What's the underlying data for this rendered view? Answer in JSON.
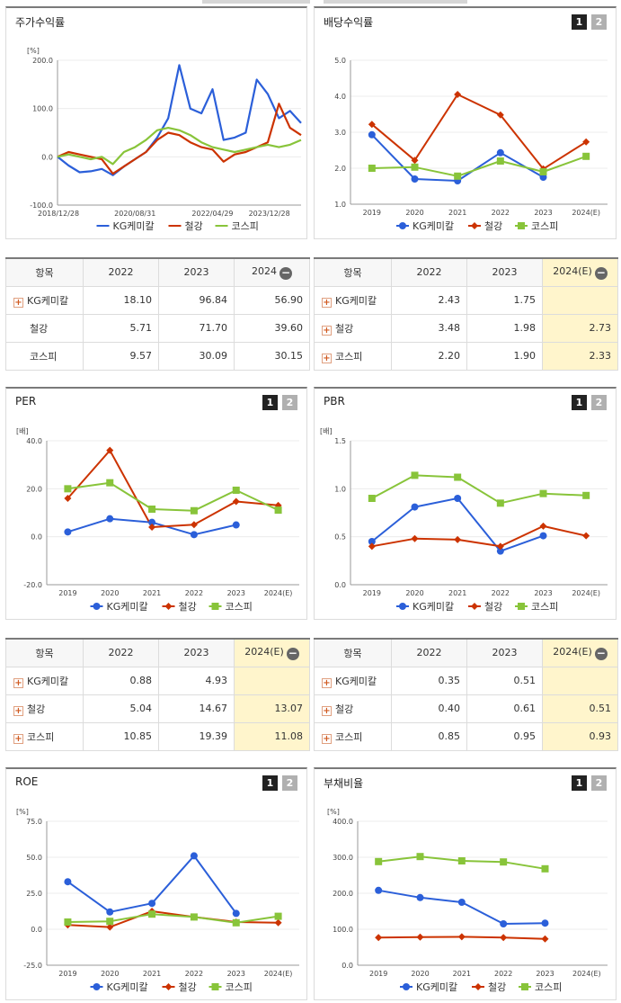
{
  "colors": {
    "kg": "#2b5fd9",
    "steel": "#cc3300",
    "kospi": "#88c43a"
  },
  "legend": [
    "KG케미칼",
    "철강",
    "코스피"
  ],
  "btn1": "1",
  "btn2": "2",
  "stock": {
    "title": "주가수익률",
    "chart_data": {
      "type": "line",
      "unit": "[%]",
      "ylim": [
        -100,
        200
      ],
      "yticks": [
        "200.0",
        "100.0",
        "0.0",
        "-100.0"
      ],
      "x_ticks": [
        "2018/12/28",
        "2020/08/31",
        "2022/04/29",
        "2023/12/28"
      ],
      "x": [
        "2018/12/28",
        "2019/03",
        "2019/06",
        "2019/09",
        "2019/12",
        "2020/03",
        "2020/06",
        "2020/08/31",
        "2020/11",
        "2021/02",
        "2021/05",
        "2021/08",
        "2021/11",
        "2022/02",
        "2022/04/29",
        "2022/07",
        "2022/10",
        "2023/01",
        "2023/04",
        "2023/07",
        "2023/10",
        "2023/12/28",
        "2024/02"
      ],
      "series": [
        {
          "name": "KG케미칼",
          "values": [
            0,
            -18,
            -32,
            -30,
            -25,
            -38,
            -20,
            -5,
            10,
            40,
            80,
            190,
            100,
            90,
            140,
            35,
            40,
            50,
            160,
            130,
            80,
            95,
            70
          ]
        },
        {
          "name": "철강",
          "values": [
            0,
            10,
            5,
            0,
            -5,
            -35,
            -20,
            -5,
            10,
            35,
            50,
            45,
            30,
            20,
            15,
            -10,
            5,
            10,
            20,
            30,
            110,
            60,
            45
          ]
        },
        {
          "name": "코스피",
          "values": [
            0,
            5,
            0,
            -5,
            0,
            -15,
            10,
            20,
            35,
            55,
            60,
            55,
            45,
            30,
            20,
            15,
            10,
            15,
            20,
            25,
            20,
            25,
            35
          ]
        }
      ]
    }
  },
  "dividend": {
    "title": "배당수익률",
    "chart_data": {
      "type": "line",
      "unit": "",
      "ylim": [
        1,
        5
      ],
      "yticks": [
        "5.0",
        "4.0",
        "3.0",
        "2.0",
        "1.0"
      ],
      "categories": [
        "2019",
        "2020",
        "2021",
        "2022",
        "2023",
        "2024(E)"
      ],
      "series": [
        {
          "name": "KG케미칼",
          "values": [
            2.93,
            1.7,
            1.65,
            2.43,
            1.75,
            null
          ]
        },
        {
          "name": "철강",
          "values": [
            3.22,
            2.22,
            4.05,
            3.48,
            1.98,
            2.73
          ]
        },
        {
          "name": "코스피",
          "values": [
            2.0,
            2.03,
            1.78,
            2.2,
            1.9,
            2.33
          ]
        }
      ]
    }
  },
  "per": {
    "title": "PER",
    "chart_data": {
      "type": "line",
      "unit": "[배]",
      "ylim": [
        -20,
        40
      ],
      "yticks": [
        "40.0",
        "20.0",
        "0.0",
        "-20.0"
      ],
      "categories": [
        "2019",
        "2020",
        "2021",
        "2022",
        "2023",
        "2024(E)"
      ],
      "series": [
        {
          "name": "KG케미칼",
          "values": [
            2,
            7.5,
            6,
            0.88,
            4.93,
            null
          ]
        },
        {
          "name": "철강",
          "values": [
            16,
            36,
            4,
            5.04,
            14.67,
            13.07
          ]
        },
        {
          "name": "코스피",
          "values": [
            20,
            22.5,
            11.5,
            10.85,
            19.39,
            11.08
          ]
        }
      ]
    }
  },
  "pbr": {
    "title": "PBR",
    "chart_data": {
      "type": "line",
      "unit": "[배]",
      "ylim": [
        0,
        1.5
      ],
      "yticks": [
        "1.5",
        "1.0",
        "0.5",
        "0.0"
      ],
      "categories": [
        "2019",
        "2020",
        "2021",
        "2022",
        "2023",
        "2024(E)"
      ],
      "series": [
        {
          "name": "KG케미칼",
          "values": [
            0.45,
            0.81,
            0.9,
            0.35,
            0.51,
            null
          ]
        },
        {
          "name": "철강",
          "values": [
            0.4,
            0.48,
            0.47,
            0.4,
            0.61,
            0.51
          ]
        },
        {
          "name": "코스피",
          "values": [
            0.9,
            1.14,
            1.12,
            0.85,
            0.95,
            0.93
          ]
        }
      ]
    }
  },
  "roe": {
    "title": "ROE",
    "chart_data": {
      "type": "line",
      "unit": "[%]",
      "ylim": [
        -25,
        75
      ],
      "yticks": [
        "75.0",
        "50.0",
        "25.0",
        "0.0",
        "-25.0"
      ],
      "categories": [
        "2019",
        "2020",
        "2021",
        "2022",
        "2023",
        "2024(E)"
      ],
      "series": [
        {
          "name": "KG케미칼",
          "values": [
            33,
            12,
            18,
            51,
            11,
            null
          ]
        },
        {
          "name": "철강",
          "values": [
            3,
            1.5,
            12.5,
            8.5,
            5,
            4.5
          ]
        },
        {
          "name": "코스피",
          "values": [
            5,
            5.5,
            10.5,
            8.5,
            4.5,
            9
          ]
        }
      ]
    }
  },
  "debt": {
    "title": "부채비율",
    "chart_data": {
      "type": "line",
      "unit": "[%]",
      "ylim": [
        0,
        400
      ],
      "yticks": [
        "400.0",
        "300.0",
        "200.0",
        "100.0",
        "0.0"
      ],
      "categories": [
        "2019",
        "2020",
        "2021",
        "2022",
        "2023",
        "2024(E)"
      ],
      "series": [
        {
          "name": "KG케미칼",
          "values": [
            208,
            188,
            175,
            115,
            117,
            null
          ]
        },
        {
          "name": "철강",
          "values": [
            77,
            78,
            79,
            77,
            73,
            null
          ]
        },
        {
          "name": "코스피",
          "values": [
            288,
            302,
            290,
            287,
            268,
            null
          ]
        }
      ]
    }
  },
  "tables": {
    "stock": {
      "headers": [
        "항목",
        "2022",
        "2023",
        "2024"
      ],
      "rows": [
        [
          "KG케미칼",
          "18.10",
          "96.84",
          "56.90"
        ],
        [
          "철강",
          "5.71",
          "71.70",
          "39.60"
        ],
        [
          "코스피",
          "9.57",
          "30.09",
          "30.15"
        ]
      ]
    },
    "dividend": {
      "headers": [
        "항목",
        "2022",
        "2023",
        "2024(E)"
      ],
      "rows": [
        [
          "KG케미칼",
          "2.43",
          "1.75",
          ""
        ],
        [
          "철강",
          "3.48",
          "1.98",
          "2.73"
        ],
        [
          "코스피",
          "2.20",
          "1.90",
          "2.33"
        ]
      ]
    },
    "per": {
      "headers": [
        "항목",
        "2022",
        "2023",
        "2024(E)"
      ],
      "rows": [
        [
          "KG케미칼",
          "0.88",
          "4.93",
          ""
        ],
        [
          "철강",
          "5.04",
          "14.67",
          "13.07"
        ],
        [
          "코스피",
          "10.85",
          "19.39",
          "11.08"
        ]
      ]
    },
    "pbr": {
      "headers": [
        "항목",
        "2022",
        "2023",
        "2024(E)"
      ],
      "rows": [
        [
          "KG케미칼",
          "0.35",
          "0.51",
          ""
        ],
        [
          "철강",
          "0.40",
          "0.61",
          "0.51"
        ],
        [
          "코스피",
          "0.85",
          "0.95",
          "0.93"
        ]
      ]
    }
  }
}
